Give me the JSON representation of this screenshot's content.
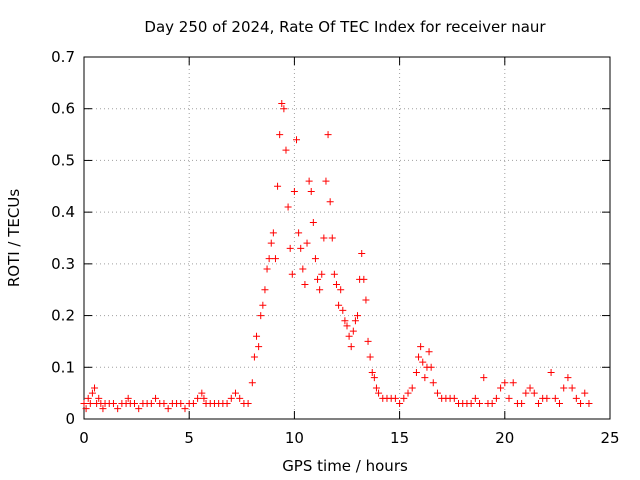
{
  "chart_data": {
    "type": "scatter",
    "title": "Day 250 of 2024, Rate Of TEC Index for receiver naur",
    "xlabel": "GPS time / hours",
    "ylabel": "ROTI / TECUs",
    "xlim": [
      0,
      25
    ],
    "ylim": [
      0,
      0.7
    ],
    "x_ticks": [
      "0",
      "5",
      "10",
      "15",
      "20",
      "25"
    ],
    "y_ticks": [
      "0",
      "0.1",
      "0.2",
      "0.3",
      "0.4",
      "0.5",
      "0.6",
      "0.7"
    ],
    "grid": true,
    "marker": "+",
    "marker_color": "#ff0000",
    "series": [
      {
        "values_note_free": true,
        "x": [
          0.0,
          0.1,
          0.2,
          0.3,
          0.4,
          0.5,
          0.6,
          0.7,
          0.8,
          0.9,
          1.0,
          1.2,
          1.4,
          1.6,
          1.8,
          2.0,
          2.1,
          2.2,
          2.4,
          2.6,
          2.8,
          3.0,
          3.2,
          3.4,
          3.6,
          3.8,
          4.0,
          4.2,
          4.4,
          4.6,
          4.8,
          5.0,
          5.2,
          5.4,
          5.6,
          5.7,
          5.8,
          6.0,
          6.2,
          6.4,
          6.6,
          6.8,
          7.0,
          7.2,
          7.4,
          7.6,
          7.8,
          8.0,
          8.1,
          8.2,
          8.3,
          8.4,
          8.5,
          8.6,
          8.7,
          8.8,
          8.9,
          9.0,
          9.1,
          9.2,
          9.3,
          9.4,
          9.5,
          9.6,
          9.7,
          9.8,
          9.9,
          10.0,
          10.1,
          10.2,
          10.3,
          10.4,
          10.5,
          10.6,
          10.7,
          10.8,
          10.9,
          11.0,
          11.1,
          11.2,
          11.3,
          11.4,
          11.5,
          11.6,
          11.7,
          11.8,
          11.9,
          12.0,
          12.1,
          12.2,
          12.3,
          12.4,
          12.5,
          12.6,
          12.7,
          12.8,
          12.9,
          13.0,
          13.1,
          13.2,
          13.3,
          13.4,
          13.5,
          13.6,
          13.7,
          13.8,
          13.9,
          14.0,
          14.2,
          14.4,
          14.6,
          14.8,
          15.0,
          15.2,
          15.4,
          15.6,
          15.8,
          15.9,
          16.0,
          16.1,
          16.2,
          16.3,
          16.4,
          16.5,
          16.6,
          16.8,
          17.0,
          17.2,
          17.4,
          17.6,
          17.8,
          18.0,
          18.2,
          18.4,
          18.6,
          18.8,
          19.0,
          19.2,
          19.4,
          19.6,
          19.8,
          20.0,
          20.2,
          20.4,
          20.6,
          20.8,
          21.0,
          21.2,
          21.4,
          21.6,
          21.8,
          22.0,
          22.2,
          22.4,
          22.6,
          22.8,
          23.0,
          23.2,
          23.4,
          23.6,
          23.8,
          24.0
        ],
        "y": [
          0.03,
          0.02,
          0.04,
          0.03,
          0.05,
          0.06,
          0.03,
          0.04,
          0.03,
          0.02,
          0.03,
          0.03,
          0.03,
          0.02,
          0.03,
          0.03,
          0.04,
          0.03,
          0.03,
          0.02,
          0.03,
          0.03,
          0.03,
          0.04,
          0.03,
          0.03,
          0.02,
          0.03,
          0.03,
          0.03,
          0.02,
          0.03,
          0.03,
          0.04,
          0.05,
          0.04,
          0.03,
          0.03,
          0.03,
          0.03,
          0.03,
          0.03,
          0.04,
          0.05,
          0.04,
          0.03,
          0.03,
          0.07,
          0.12,
          0.16,
          0.14,
          0.2,
          0.22,
          0.25,
          0.29,
          0.31,
          0.34,
          0.36,
          0.31,
          0.45,
          0.55,
          0.61,
          0.6,
          0.52,
          0.41,
          0.33,
          0.28,
          0.44,
          0.54,
          0.36,
          0.33,
          0.29,
          0.26,
          0.34,
          0.46,
          0.44,
          0.38,
          0.31,
          0.27,
          0.25,
          0.28,
          0.35,
          0.46,
          0.55,
          0.42,
          0.35,
          0.28,
          0.26,
          0.22,
          0.25,
          0.21,
          0.19,
          0.18,
          0.16,
          0.14,
          0.17,
          0.19,
          0.2,
          0.27,
          0.32,
          0.27,
          0.23,
          0.15,
          0.12,
          0.09,
          0.08,
          0.06,
          0.05,
          0.04,
          0.04,
          0.04,
          0.04,
          0.03,
          0.04,
          0.05,
          0.06,
          0.09,
          0.12,
          0.14,
          0.11,
          0.08,
          0.1,
          0.13,
          0.1,
          0.07,
          0.05,
          0.04,
          0.04,
          0.04,
          0.04,
          0.03,
          0.03,
          0.03,
          0.03,
          0.04,
          0.03,
          0.08,
          0.03,
          0.03,
          0.04,
          0.06,
          0.07,
          0.04,
          0.07,
          0.03,
          0.03,
          0.05,
          0.06,
          0.05,
          0.03,
          0.04,
          0.04,
          0.09,
          0.04,
          0.03,
          0.06,
          0.08,
          0.06,
          0.04,
          0.03,
          0.05,
          0.03
        ]
      }
    ]
  }
}
